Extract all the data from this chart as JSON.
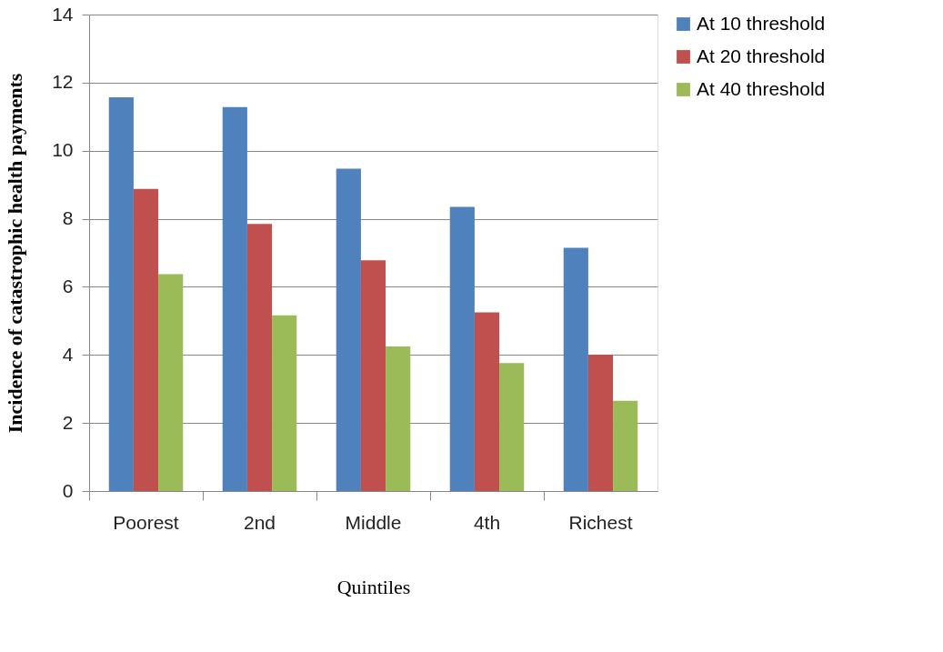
{
  "chart_data": {
    "type": "bar",
    "xlabel": "Quintiles",
    "ylabel": "Incidence of catastrophic health payments",
    "categories": [
      "Poorest",
      "2nd",
      "Middle",
      "4th",
      "Richest"
    ],
    "series": [
      {
        "name": "At 10  threshold",
        "color": "#4f81bd",
        "values": [
          11.57,
          11.28,
          9.47,
          8.35,
          7.15
        ]
      },
      {
        "name": "At 20  threshold",
        "color": "#c0504d",
        "values": [
          8.88,
          7.85,
          6.78,
          5.25,
          4.0
        ]
      },
      {
        "name": "At 40  threshold",
        "color": "#9bbb59",
        "values": [
          6.37,
          5.16,
          4.25,
          3.76,
          2.65
        ]
      }
    ],
    "ylim": [
      0,
      14
    ],
    "yticks": [
      0,
      2,
      4,
      6,
      8,
      10,
      12,
      14
    ],
    "grid": "y",
    "legend": "right"
  }
}
